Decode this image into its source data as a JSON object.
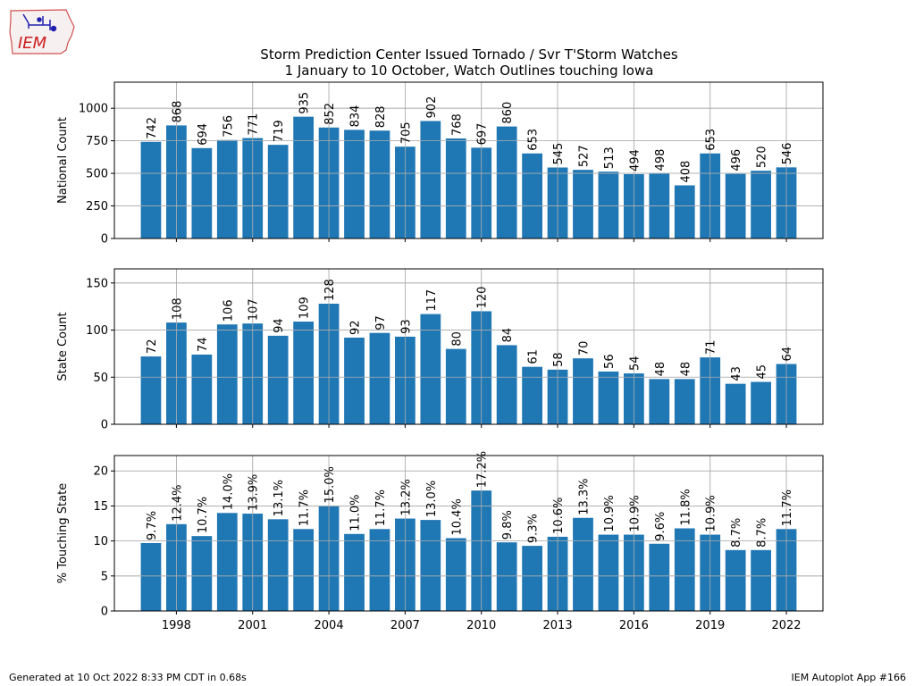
{
  "header": {
    "logo_text": "IEM",
    "title_line1": "Storm Prediction Center Issued Tornado / Svr T'Storm Watches",
    "title_line2": "1 January to 10 October, Watch Outlines touching Iowa"
  },
  "footer": {
    "generated": "Generated at 10 Oct 2022 8:33 PM CDT in 0.68s",
    "app": "IEM Autoplot App #166"
  },
  "colors": {
    "bar": "#1f77b4",
    "grid": "#b0b0b0"
  },
  "chart_data": [
    {
      "type": "bar",
      "title": "",
      "xlabel": "",
      "ylabel": "National Count",
      "ylim": [
        0,
        1200
      ],
      "yticks": [
        0,
        250,
        500,
        750,
        1000
      ],
      "xticks": [
        1998,
        2001,
        2004,
        2007,
        2010,
        2013,
        2016,
        2019,
        2022
      ],
      "grid": true,
      "categories": [
        1997,
        1998,
        1999,
        2000,
        2001,
        2002,
        2003,
        2004,
        2005,
        2006,
        2007,
        2008,
        2009,
        2010,
        2011,
        2012,
        2013,
        2014,
        2015,
        2016,
        2017,
        2018,
        2019,
        2020,
        2021,
        2022
      ],
      "values": [
        742,
        868,
        694,
        756,
        771,
        719,
        935,
        852,
        834,
        828,
        705,
        902,
        768,
        697,
        860,
        653,
        545,
        527,
        513,
        494,
        498,
        408,
        653,
        496,
        520,
        546
      ],
      "labels": [
        "742",
        "868",
        "694",
        "756",
        "771",
        "719",
        "935",
        "852",
        "834",
        "828",
        "705",
        "902",
        "768",
        "697",
        "860",
        "653",
        "545",
        "527",
        "513",
        "494",
        "498",
        "408",
        "653",
        "496",
        "520",
        "546"
      ]
    },
    {
      "type": "bar",
      "title": "",
      "xlabel": "",
      "ylabel": "State Count",
      "ylim": [
        0,
        165
      ],
      "yticks": [
        0,
        50,
        100,
        150
      ],
      "xticks": [
        1998,
        2001,
        2004,
        2007,
        2010,
        2013,
        2016,
        2019,
        2022
      ],
      "grid": true,
      "categories": [
        1997,
        1998,
        1999,
        2000,
        2001,
        2002,
        2003,
        2004,
        2005,
        2006,
        2007,
        2008,
        2009,
        2010,
        2011,
        2012,
        2013,
        2014,
        2015,
        2016,
        2017,
        2018,
        2019,
        2020,
        2021,
        2022
      ],
      "values": [
        72,
        108,
        74,
        106,
        107,
        94,
        109,
        128,
        92,
        97,
        93,
        117,
        80,
        120,
        84,
        61,
        58,
        70,
        56,
        54,
        48,
        48,
        71,
        43,
        45,
        64
      ],
      "labels": [
        "72",
        "108",
        "74",
        "106",
        "107",
        "94",
        "109",
        "128",
        "92",
        "97",
        "93",
        "117",
        "80",
        "120",
        "84",
        "61",
        "58",
        "70",
        "56",
        "54",
        "48",
        "48",
        "71",
        "43",
        "45",
        "64"
      ]
    },
    {
      "type": "bar",
      "title": "",
      "xlabel": "",
      "ylabel": "% Touching State",
      "ylim": [
        0,
        22.2
      ],
      "yticks": [
        0,
        5,
        10,
        15,
        20
      ],
      "xticks": [
        1998,
        2001,
        2004,
        2007,
        2010,
        2013,
        2016,
        2019,
        2022
      ],
      "show_xtick_labels": true,
      "grid": true,
      "categories": [
        1997,
        1998,
        1999,
        2000,
        2001,
        2002,
        2003,
        2004,
        2005,
        2006,
        2007,
        2008,
        2009,
        2010,
        2011,
        2012,
        2013,
        2014,
        2015,
        2016,
        2017,
        2018,
        2019,
        2020,
        2021,
        2022
      ],
      "values": [
        9.7,
        12.4,
        10.7,
        14.0,
        13.9,
        13.1,
        11.7,
        15.0,
        11.0,
        11.7,
        13.2,
        13.0,
        10.4,
        17.2,
        9.8,
        9.3,
        10.6,
        13.3,
        10.9,
        10.9,
        9.6,
        11.8,
        10.9,
        8.7,
        8.7,
        11.7
      ],
      "labels": [
        "9.7%",
        "12.4%",
        "10.7%",
        "14.0%",
        "13.9%",
        "13.1%",
        "11.7%",
        "15.0%",
        "11.0%",
        "11.7%",
        "13.2%",
        "13.0%",
        "10.4%",
        "17.2%",
        "9.8%",
        "9.3%",
        "10.6%",
        "13.3%",
        "10.9%",
        "10.9%",
        "9.6%",
        "11.8%",
        "10.9%",
        "8.7%",
        "8.7%",
        "11.7%"
      ]
    }
  ]
}
